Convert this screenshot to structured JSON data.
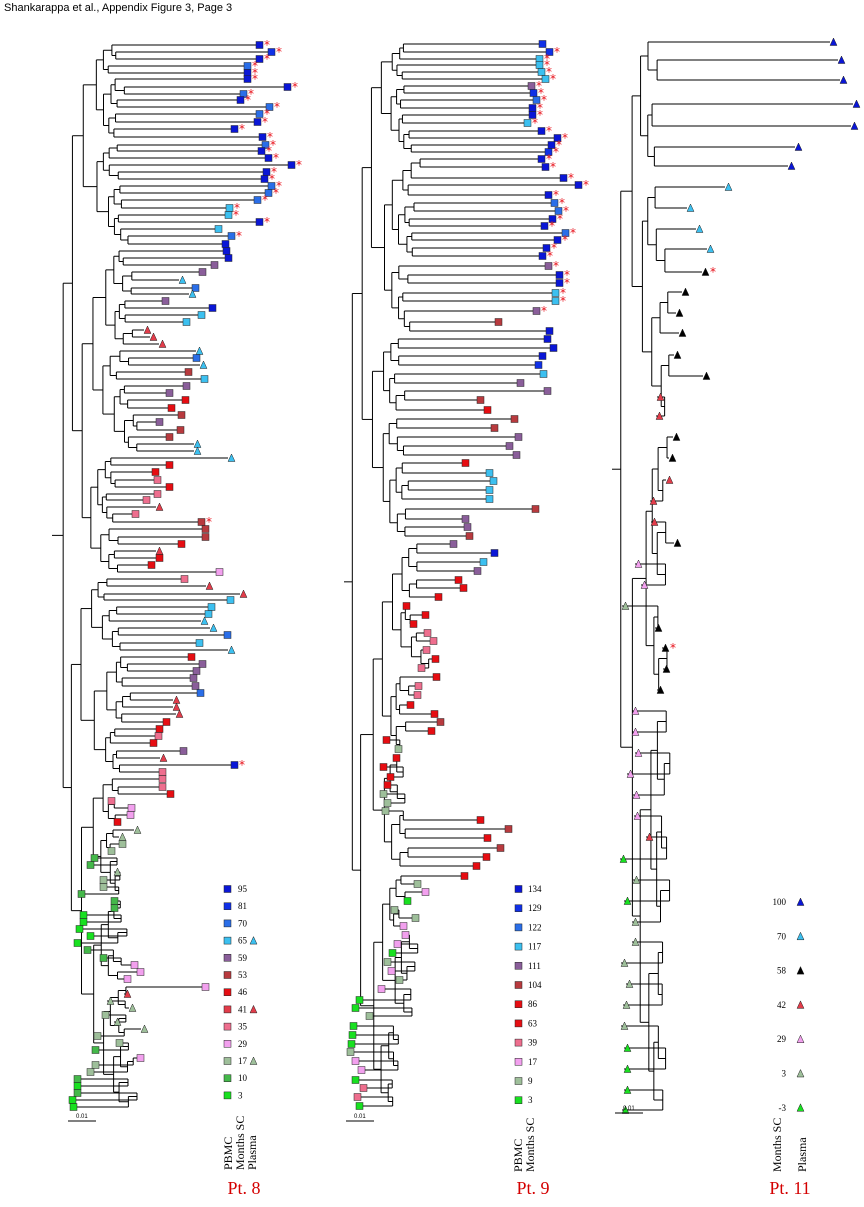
{
  "header": "Shankarappa et al., Appendix Figure 3, Page 3",
  "colors": {
    "m95": "#0a16d6",
    "m81": "#1030e6",
    "m70": "#2a6ee8",
    "m65": "#3cc0f0",
    "m59": "#8a5e9a",
    "m53": "#b83a3e",
    "m46": "#e60d12",
    "m41": "#e23c4a",
    "m35": "#ee6e8e",
    "m29": "#f2a0ee",
    "m17": "#9ebf9a",
    "m10": "#44b84a",
    "m3": "#18e020",
    "star": "#e8101a"
  },
  "panels": [
    {
      "title": "Pt. 8",
      "scale": "0.01",
      "legend_labels": [
        "PBMC",
        "Months SC",
        "Plasma"
      ],
      "legend": [
        {
          "value": "95"
        },
        {
          "value": "81"
        },
        {
          "value": "70"
        },
        {
          "value": "65"
        },
        {
          "value": "59"
        },
        {
          "value": "53"
        },
        {
          "value": "46"
        },
        {
          "value": "41"
        },
        {
          "value": "35"
        },
        {
          "value": "29"
        },
        {
          "value": "17"
        },
        {
          "value": "10"
        },
        {
          "value": "3"
        }
      ]
    },
    {
      "title": "Pt. 9",
      "scale": "0.01",
      "legend_labels": [
        "PBMC",
        "Months SC"
      ],
      "legend": [
        {
          "value": "134"
        },
        {
          "value": "129"
        },
        {
          "value": "122"
        },
        {
          "value": "117"
        },
        {
          "value": "111"
        },
        {
          "value": "104"
        },
        {
          "value": "86"
        },
        {
          "value": "63"
        },
        {
          "value": "39"
        },
        {
          "value": "17"
        },
        {
          "value": "9"
        },
        {
          "value": "3"
        }
      ]
    },
    {
      "title": "Pt. 11",
      "scale": "0.01",
      "legend_labels": [
        "Months SC",
        "Plasma"
      ],
      "legend": [
        {
          "value": "100"
        },
        {
          "value": "70"
        },
        {
          "value": "58"
        },
        {
          "value": "42"
        },
        {
          "value": "29"
        },
        {
          "value": "3"
        },
        {
          "value": "-3"
        }
      ]
    }
  ]
}
